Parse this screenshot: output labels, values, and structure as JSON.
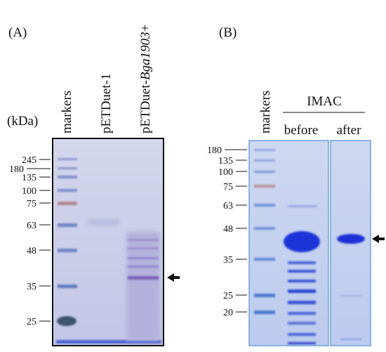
{
  "panel_a": {
    "label": "(A)",
    "unit": "(kDa)",
    "lanes": [
      "markers",
      "pETDuet-1"
    ],
    "lane_3": [
      "pETDuet-",
      "Bga1903",
      "+"
    ],
    "markers": [
      "245",
      "180",
      "135",
      "100",
      "75",
      "63",
      "48",
      "35",
      "25"
    ]
  },
  "panel_b": {
    "label": "(B)",
    "lane_1": "markers",
    "group": "IMAC",
    "lanes": [
      "before",
      "after"
    ],
    "markers": [
      "180",
      "135",
      "100",
      "75",
      "63",
      "48",
      "35",
      "25",
      "20"
    ]
  }
}
